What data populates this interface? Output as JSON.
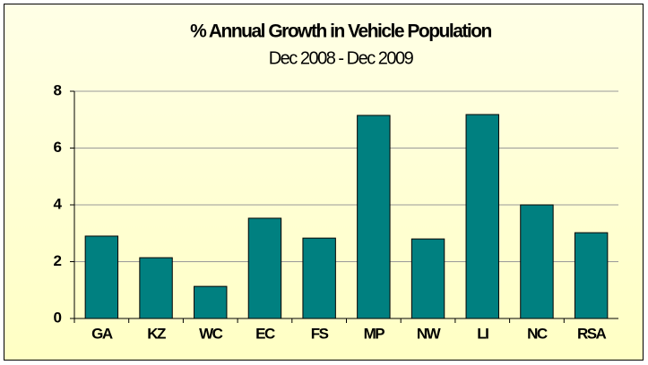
{
  "chart_data": {
    "type": "bar",
    "title": "% Annual Growth in Vehicle Population",
    "subtitle": "Dec 2008 - Dec 2009",
    "categories": [
      "GA",
      "KZ",
      "WC",
      "EC",
      "FS",
      "MP",
      "NW",
      "LI",
      "NC",
      "RSA"
    ],
    "values": [
      2.9,
      2.14,
      1.13,
      3.53,
      2.83,
      7.15,
      2.8,
      7.18,
      4.0,
      3.02
    ],
    "color": "#008080",
    "ylim": [
      0,
      8
    ],
    "yticks": [
      0,
      2,
      4,
      6,
      8
    ],
    "grid": true
  }
}
